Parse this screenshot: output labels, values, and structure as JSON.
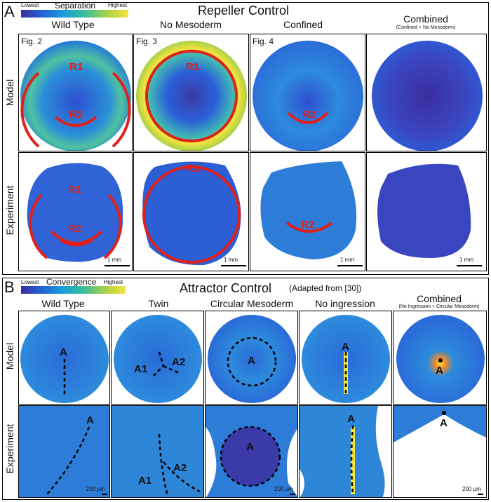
{
  "panelA": {
    "letter": "A",
    "title": "Repeller Control",
    "colorbar": {
      "low": "Lowest",
      "title": "Separation",
      "high": "Highest"
    },
    "columns": [
      {
        "label": "Wild Type",
        "fig": "Fig. 2"
      },
      {
        "label": "No Mesoderm",
        "fig": "Fig. 3"
      },
      {
        "label": "Confined",
        "fig": "Fig. 4"
      },
      {
        "label": "Combined",
        "sub": "(Confined + No Mesoderm)"
      }
    ],
    "rows": [
      "Model",
      "Experiment"
    ],
    "scale": "1 mm",
    "labels": {
      "r1": "R1",
      "r2": "R2"
    }
  },
  "panelB": {
    "letter": "B",
    "title": "Attractor Control",
    "title_note": "(Adapted from [30])",
    "colorbar": {
      "low": "Lowest",
      "title": "Convergence",
      "high": "Highest"
    },
    "columns": [
      {
        "label": "Wild Type"
      },
      {
        "label": "Twin"
      },
      {
        "label": "Circular Mesoderm"
      },
      {
        "label": "No ingression"
      },
      {
        "label": "Combined",
        "sub": "(No Ingression + Circular Mesoderm)"
      }
    ],
    "rows": [
      "Model",
      "Experiment"
    ],
    "scale": "200 µm",
    "labels": {
      "a": "A",
      "a1": "A1",
      "a2": "A2"
    }
  },
  "colors": {
    "low": "#3a2f9e",
    "mid": "#1f8fc8",
    "green": "#4fc08d",
    "high": "#f4e43a",
    "line": "#e0201b"
  }
}
